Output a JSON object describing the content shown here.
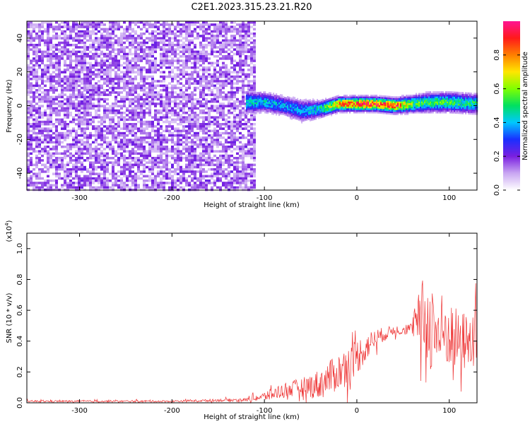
{
  "title": "C2E1.2023.315.23.21.R20",
  "chart_data": [
    {
      "type": "heatmap",
      "title": "C2E1.2023.315.23.21.R20",
      "xlabel": "Height of straight line (km)",
      "ylabel": "Frequency (Hz)",
      "xlim": [
        -357,
        130
      ],
      "ylim": [
        -50,
        50
      ],
      "xticks": [
        -300,
        -200,
        -100,
        0,
        100
      ],
      "yticks": [
        -40,
        -20,
        0,
        20,
        40
      ],
      "grid": false,
      "description_of_values": "normalized spectral amplitude vs height and frequency",
      "noise_region": {
        "x_range": [
          -357,
          -110
        ],
        "y_range": [
          -50,
          50
        ],
        "amplitude": 0.05
      },
      "signal_band": {
        "x": [
          -120,
          -100,
          -80,
          -60,
          -40,
          -20,
          0,
          20,
          40,
          60,
          80,
          100,
          130
        ],
        "center_hz": [
          2,
          2,
          0,
          -3,
          -2,
          1,
          1,
          1,
          0,
          1,
          2,
          2,
          1
        ],
        "halfwidth_hz": [
          6,
          5,
          5,
          6,
          4,
          3,
          3,
          3,
          3,
          4,
          5,
          5,
          5
        ],
        "peak_amplitude": [
          0.45,
          0.45,
          0.4,
          0.4,
          0.5,
          0.85,
          0.95,
          0.95,
          0.95,
          0.6,
          0.55,
          0.55,
          0.5
        ]
      },
      "colorbar": {
        "label": "Normalized spectral amplitude",
        "range": [
          0.0,
          1.0
        ],
        "ticks": [
          "0.0",
          "0.2",
          "0.4",
          "0.6",
          "0.8"
        ],
        "colors": [
          "#ffffff",
          "#c9a6f2",
          "#7a1fe0",
          "#1a2fff",
          "#00c8ff",
          "#00e060",
          "#7fff00",
          "#ffe600",
          "#ff7f00",
          "#ff1a1a",
          "#ff1493"
        ]
      }
    },
    {
      "type": "line",
      "xlabel": "Height of straight line (km)",
      "ylabel": "SNR (10 * v/v)",
      "scale_note": "(x10",
      "scale_exp": "4",
      "scale_close": ")",
      "xlim": [
        -357,
        130
      ],
      "ylim": [
        0.0,
        1.1
      ],
      "xticks": [
        -300,
        -200,
        -100,
        0,
        100
      ],
      "yticks": [
        "0.0",
        "0.2",
        "0.4",
        "0.6",
        "0.8",
        "1.0"
      ],
      "grid": false,
      "series": [
        {
          "color": "#ee3333",
          "x": [
            -357,
            -300,
            -200,
            -120,
            -100,
            -80,
            -60,
            -40,
            -20,
            0,
            20,
            40,
            60,
            70,
            80,
            90,
            100,
            110,
            130
          ],
          "y": [
            0.01,
            0.01,
            0.01,
            0.02,
            0.04,
            0.08,
            0.1,
            0.12,
            0.2,
            0.3,
            0.42,
            0.47,
            0.48,
            0.55,
            0.5,
            0.45,
            0.45,
            0.4,
            0.4
          ],
          "spread": [
            0.006,
            0.006,
            0.006,
            0.01,
            0.03,
            0.05,
            0.06,
            0.1,
            0.12,
            0.12,
            0.06,
            0.03,
            0.04,
            0.25,
            0.3,
            0.28,
            0.22,
            0.2,
            0.18
          ]
        }
      ]
    }
  ]
}
